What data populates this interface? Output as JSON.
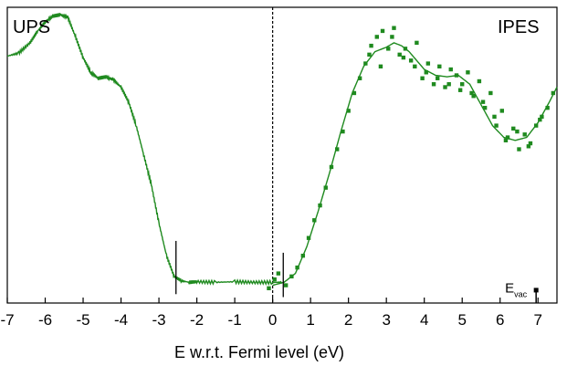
{
  "chart_data": {
    "type": "line+scatter",
    "title": "",
    "xlabel": "E w.r.t. Fermi level (eV)",
    "ylabel": "",
    "xlim": [
      -7,
      7.5
    ],
    "ylim": [
      0,
      1.0
    ],
    "x_ticks": [
      -7,
      -6,
      -5,
      -4,
      -3,
      -2,
      -1,
      0,
      1,
      2,
      3,
      4,
      5,
      6,
      7
    ],
    "x_tick_labels": [
      "-7",
      "-6",
      "-5",
      "-4",
      "-3",
      "-2",
      "-1",
      "0",
      "1",
      "2",
      "3",
      "4",
      "5",
      "6",
      "7"
    ],
    "corner_labels": {
      "left": "UPS",
      "right": "IPES"
    },
    "fermi_line": {
      "x": 0,
      "style": "dashed"
    },
    "onset_markers": [
      {
        "x": -2.55,
        "y_low": 0.03,
        "y_high": 0.21
      },
      {
        "x": 0.28,
        "y_low": 0.02,
        "y_high": 0.17
      }
    ],
    "evac": {
      "label": "E",
      "subscript": "vac",
      "x": 6.95,
      "y_low": 0.0,
      "y_high": 0.045
    },
    "series": [
      {
        "name": "UPS",
        "style": "line",
        "color": "#1f8a1f",
        "x": [
          -7.0,
          -6.7,
          -6.4,
          -6.2,
          -6.0,
          -5.8,
          -5.6,
          -5.4,
          -5.2,
          -5.0,
          -4.8,
          -4.6,
          -4.4,
          -4.2,
          -4.0,
          -3.8,
          -3.6,
          -3.4,
          -3.2,
          -3.0,
          -2.8,
          -2.6,
          -2.4,
          -2.2,
          -2.0,
          -1.5,
          -1.0,
          -0.5,
          0.0,
          0.25
        ],
        "y": [
          0.835,
          0.845,
          0.88,
          0.92,
          0.95,
          0.97,
          0.975,
          0.965,
          0.9,
          0.83,
          0.78,
          0.76,
          0.765,
          0.755,
          0.73,
          0.68,
          0.6,
          0.5,
          0.4,
          0.27,
          0.16,
          0.09,
          0.075,
          0.07,
          0.072,
          0.07,
          0.072,
          0.07,
          0.07,
          0.07
        ]
      },
      {
        "name": "IPES fit",
        "style": "line",
        "color": "#1f8a1f",
        "x": [
          0.0,
          0.3,
          0.6,
          0.9,
          1.2,
          1.5,
          1.8,
          2.1,
          2.4,
          2.7,
          3.0,
          3.2,
          3.4,
          3.6,
          3.8,
          4.0,
          4.3,
          4.6,
          4.9,
          5.2,
          5.5,
          5.8,
          6.1,
          6.4,
          6.7,
          7.0,
          7.3,
          7.5
        ],
        "y": [
          0.06,
          0.07,
          0.1,
          0.19,
          0.31,
          0.44,
          0.58,
          0.71,
          0.8,
          0.85,
          0.865,
          0.88,
          0.87,
          0.85,
          0.82,
          0.79,
          0.77,
          0.765,
          0.77,
          0.74,
          0.67,
          0.6,
          0.56,
          0.55,
          0.56,
          0.61,
          0.68,
          0.73
        ]
      },
      {
        "name": "IPES data",
        "style": "scatter",
        "color": "#1f8a1f",
        "x": [
          -0.1,
          0.05,
          0.15,
          0.35,
          0.5,
          0.65,
          0.8,
          0.95,
          1.1,
          1.25,
          1.4,
          1.55,
          1.7,
          1.85,
          2.0,
          2.15,
          2.3,
          2.45,
          2.6,
          2.75,
          2.9,
          3.05,
          3.2,
          3.35,
          3.5,
          3.65,
          3.8,
          3.95,
          4.1,
          4.25,
          4.4,
          4.55,
          4.7,
          4.85,
          5.0,
          5.15,
          5.3,
          5.45,
          5.6,
          5.75,
          5.9,
          6.05,
          6.2,
          6.35,
          6.5,
          6.65,
          6.8,
          6.95,
          7.1,
          7.25,
          7.4,
          2.55,
          2.85,
          3.15,
          3.45,
          3.75,
          4.05,
          4.35,
          4.65,
          4.95,
          5.25,
          5.55,
          5.85,
          6.15,
          6.45,
          6.75,
          7.05
        ],
        "y": [
          0.05,
          0.08,
          0.1,
          0.06,
          0.09,
          0.12,
          0.16,
          0.22,
          0.28,
          0.33,
          0.39,
          0.46,
          0.52,
          0.58,
          0.65,
          0.71,
          0.76,
          0.81,
          0.87,
          0.9,
          0.92,
          0.86,
          0.93,
          0.84,
          0.86,
          0.82,
          0.88,
          0.76,
          0.81,
          0.74,
          0.8,
          0.73,
          0.79,
          0.77,
          0.74,
          0.78,
          0.7,
          0.75,
          0.66,
          0.71,
          0.6,
          0.65,
          0.56,
          0.59,
          0.52,
          0.57,
          0.54,
          0.6,
          0.63,
          0.66,
          0.71,
          0.84,
          0.8,
          0.9,
          0.83,
          0.8,
          0.78,
          0.76,
          0.74,
          0.72,
          0.71,
          0.68,
          0.63,
          0.55,
          0.58,
          0.53,
          0.62
        ]
      }
    ]
  }
}
